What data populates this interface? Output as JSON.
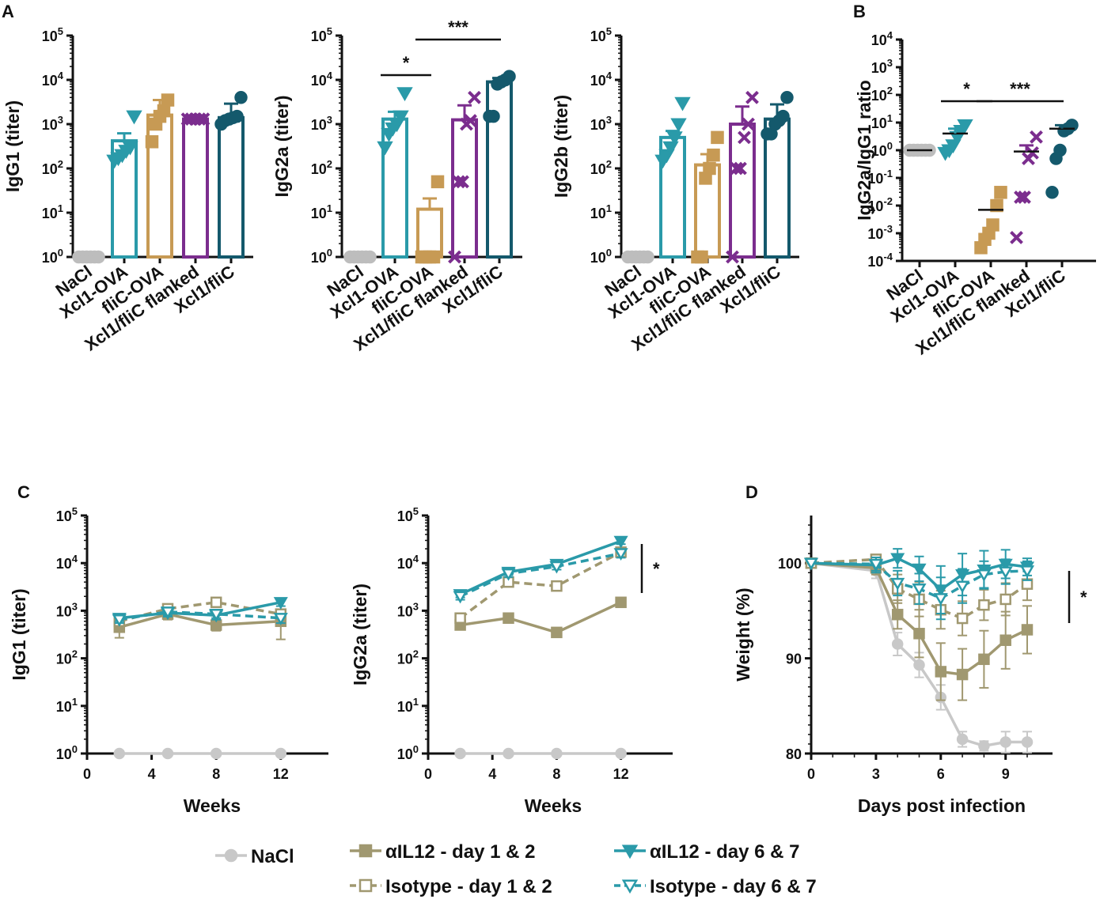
{
  "chart_data": [
    {
      "panel": "A",
      "type": "bar",
      "ylabel": "IgG1 (titer)",
      "yscale": "log",
      "ylim": [
        1,
        100000
      ],
      "categories": [
        "NaCl",
        "Xcl1-OVA",
        "fliC-OVA",
        "Xcl1/fliC flanked",
        "Xcl1/fliC"
      ],
      "values": [
        1,
        420,
        1600,
        1300,
        1400
      ],
      "errors": [
        0,
        200,
        1900,
        0,
        1500
      ],
      "points": [
        [
          1,
          1,
          1,
          1,
          1,
          1
        ],
        [
          150,
          170,
          200,
          250,
          300,
          1500
        ],
        [
          400,
          1000,
          1500,
          2000,
          3500
        ],
        [
          1300,
          1300,
          1300,
          1300,
          1300
        ],
        [
          1000,
          1200,
          1300,
          1400,
          1500,
          4000
        ]
      ],
      "colors": [
        "#bdbdbd",
        "#2a9aa9",
        "#c79a54",
        "#7b2d8e",
        "#14596c"
      ],
      "markers": [
        "circle",
        "triangle-down",
        "square",
        "x",
        "circle"
      ],
      "significance": []
    },
    {
      "panel": "A",
      "type": "bar",
      "ylabel": "IgG2a (titer)",
      "yscale": "log",
      "ylim": [
        1,
        100000
      ],
      "categories": [
        "NaCl",
        "Xcl1-OVA",
        "fliC-OVA",
        "Xcl1/fliC flanked",
        "Xcl1/fliC"
      ],
      "values": [
        1,
        1300,
        12,
        1250,
        9000
      ],
      "errors": [
        0,
        600,
        9,
        1400,
        2000
      ],
      "points": [
        [
          1,
          1,
          1,
          1,
          1,
          1
        ],
        [
          300,
          600,
          800,
          1000,
          1500,
          5000
        ],
        [
          1,
          1,
          1,
          1,
          50
        ],
        [
          1,
          50,
          50,
          1000,
          1200,
          4000
        ],
        [
          1500,
          1500,
          8000,
          9000,
          10000,
          12000
        ]
      ],
      "colors": [
        "#bdbdbd",
        "#2a9aa9",
        "#c79a54",
        "#7b2d8e",
        "#14596c"
      ],
      "markers": [
        "circle",
        "triangle-down",
        "square",
        "x",
        "circle"
      ],
      "significance": [
        {
          "from": 1,
          "to": 2,
          "label": "*"
        },
        {
          "from": 2,
          "to": 4,
          "label": "***"
        }
      ]
    },
    {
      "panel": "A",
      "type": "bar",
      "ylabel": "IgG2b (titer)",
      "yscale": "log",
      "ylim": [
        1,
        100000
      ],
      "categories": [
        "NaCl",
        "Xcl1-OVA",
        "fliC-OVA",
        "Xcl1/fliC flanked",
        "Xcl1/fliC"
      ],
      "values": [
        1,
        500,
        120,
        1000,
        1300
      ],
      "errors": [
        0,
        200,
        90,
        1500,
        1500
      ],
      "points": [
        [
          1,
          1,
          1,
          1,
          1,
          1
        ],
        [
          150,
          200,
          300,
          500,
          1000,
          3000
        ],
        [
          1,
          1,
          60,
          100,
          200,
          500
        ],
        [
          1,
          100,
          100,
          500,
          1000,
          4000
        ],
        [
          600,
          600,
          1000,
          1200,
          1500,
          4000
        ]
      ],
      "colors": [
        "#bdbdbd",
        "#2a9aa9",
        "#c79a54",
        "#7b2d8e",
        "#14596c"
      ],
      "markers": [
        "circle",
        "triangle-down",
        "square",
        "x",
        "circle"
      ],
      "significance": []
    },
    {
      "panel": "B",
      "type": "scatter",
      "ylabel": "IgG2a/IgG1 ratio",
      "yscale": "log",
      "ylim": [
        0.0001,
        10000
      ],
      "categories": [
        "NaCl",
        "Xcl1-OVA",
        "fliC-OVA",
        "Xcl1/fliC flanked",
        "Xcl1/fliC"
      ],
      "means": [
        1,
        4,
        0.007,
        0.9,
        6
      ],
      "errors": [
        0,
        2,
        0,
        0.6,
        2
      ],
      "points": [
        [
          1,
          1,
          1,
          1,
          1,
          1
        ],
        [
          0.8,
          1,
          1.5,
          3,
          5,
          8
        ],
        [
          0.0003,
          0.0006,
          0.001,
          0.002,
          0.01,
          0.03
        ],
        [
          0.0007,
          0.02,
          0.02,
          0.5,
          0.8,
          3
        ],
        [
          0.03,
          0.5,
          1,
          5,
          6,
          8
        ]
      ],
      "colors": [
        "#bdbdbd",
        "#2a9aa9",
        "#c79a54",
        "#7b2d8e",
        "#14596c"
      ],
      "markers": [
        "circle",
        "triangle-down",
        "square",
        "x",
        "circle"
      ],
      "significance": [
        {
          "from": 1,
          "to": 2,
          "label": "*"
        },
        {
          "from": 2,
          "to": 4,
          "label": "***"
        }
      ]
    },
    {
      "panel": "C",
      "type": "line",
      "ylabel": "IgG1 (titer)",
      "xlabel": "Weeks",
      "yscale": "log",
      "ylim": [
        1,
        100000
      ],
      "xlim": [
        0,
        15
      ],
      "xticks": [
        0,
        4,
        8,
        12
      ],
      "series": [
        {
          "name": "NaCl",
          "x": [
            2,
            5,
            8,
            12
          ],
          "values": [
            1,
            1,
            1,
            1
          ],
          "errors": [
            0,
            0,
            0,
            0
          ]
        },
        {
          "name": "αIL12 - day 1 & 2",
          "x": [
            2,
            5,
            8,
            12
          ],
          "values": [
            450,
            850,
            500,
            600
          ],
          "errors": [
            180,
            200,
            120,
            350
          ]
        },
        {
          "name": "Isotype - day 1 & 2",
          "x": [
            2,
            5,
            8,
            12
          ],
          "values": [
            600,
            1100,
            1500,
            850
          ],
          "errors": [
            150,
            250,
            300,
            200
          ]
        },
        {
          "name": "αIL12 - day 6 & 7",
          "x": [
            2,
            5,
            8,
            12
          ],
          "values": [
            700,
            900,
            800,
            1500
          ],
          "errors": [
            100,
            150,
            150,
            250
          ]
        },
        {
          "name": "Isotype - day 6 & 7",
          "x": [
            2,
            5,
            8,
            12
          ],
          "values": [
            650,
            950,
            850,
            700
          ],
          "errors": [
            100,
            150,
            150,
            150
          ]
        }
      ],
      "significance": []
    },
    {
      "panel": "C",
      "type": "line",
      "ylabel": "IgG2a (titer)",
      "xlabel": "Weeks",
      "yscale": "log",
      "ylim": [
        1,
        100000
      ],
      "xlim": [
        0,
        15
      ],
      "xticks": [
        0,
        4,
        8,
        12
      ],
      "series": [
        {
          "name": "NaCl",
          "x": [
            2,
            5,
            8,
            12
          ],
          "values": [
            1,
            1,
            1,
            1
          ],
          "errors": [
            0,
            0,
            0,
            0
          ]
        },
        {
          "name": "αIL12 - day 1 & 2",
          "x": [
            2,
            5,
            8,
            12
          ],
          "values": [
            500,
            700,
            350,
            1500
          ],
          "errors": [
            100,
            100,
            60,
            250
          ]
        },
        {
          "name": "Isotype - day 1 & 2",
          "x": [
            2,
            5,
            8,
            12
          ],
          "values": [
            700,
            4000,
            3300,
            17000
          ],
          "errors": [
            150,
            800,
            600,
            3000
          ]
        },
        {
          "name": "αIL12 - day 6 & 7",
          "x": [
            2,
            5,
            8,
            12
          ],
          "values": [
            2200,
            6500,
            9500,
            29000
          ],
          "errors": [
            300,
            900,
            1200,
            4000
          ]
        },
        {
          "name": "Isotype - day 6 & 7",
          "x": [
            2,
            5,
            8,
            12
          ],
          "values": [
            2000,
            6000,
            8500,
            16000
          ],
          "errors": [
            300,
            900,
            1200,
            3000
          ]
        }
      ],
      "significance": [
        {
          "label": "*"
        }
      ]
    },
    {
      "panel": "D",
      "type": "line",
      "ylabel": "Weight (%)",
      "xlabel": "Days post infection",
      "ylim": [
        80,
        105
      ],
      "xlim": [
        0,
        11
      ],
      "xticks": [
        0,
        3,
        6,
        9
      ],
      "yticks": [
        80,
        90,
        100
      ],
      "series": [
        {
          "name": "NaCl",
          "x": [
            0,
            3,
            4,
            5,
            6,
            7,
            8,
            9,
            10
          ],
          "values": [
            100,
            99.2,
            91.5,
            89.3,
            85.9,
            81.5,
            80.8,
            81.2,
            81.2
          ],
          "errors": [
            0,
            0.8,
            1.2,
            1.3,
            1.3,
            0.8,
            0.5,
            1.1,
            1.1
          ]
        },
        {
          "name": "αIL12 - day 1 & 2",
          "x": [
            0,
            3,
            4,
            5,
            6,
            7,
            8,
            9,
            10
          ],
          "values": [
            100,
            99.5,
            94.6,
            92.6,
            88.6,
            88.3,
            89.9,
            91.9,
            93.0
          ],
          "errors": [
            0,
            0.7,
            1.5,
            2.5,
            3.0,
            2.7,
            3.0,
            3.0,
            2.5
          ]
        },
        {
          "name": "Isotype - day 1 & 2",
          "x": [
            0,
            3,
            4,
            5,
            6,
            7,
            8,
            9,
            10
          ],
          "values": [
            100,
            100.4,
            97.3,
            96.2,
            95.1,
            94.2,
            95.6,
            96.2,
            97.8
          ],
          "errors": [
            0,
            0.5,
            1.5,
            1.8,
            2.0,
            1.8,
            1.6,
            1.7,
            1.7
          ]
        },
        {
          "name": "αIL12 - day 6 & 7",
          "x": [
            0,
            3,
            4,
            5,
            6,
            7,
            8,
            9,
            10
          ],
          "values": [
            100,
            99.8,
            100.5,
            99.4,
            97.2,
            98.8,
            99.3,
            99.9,
            99.6
          ],
          "errors": [
            0,
            0.8,
            1.0,
            1.3,
            2.5,
            2.2,
            2.0,
            1.5,
            0.9
          ]
        },
        {
          "name": "Isotype - day 6 & 7",
          "x": [
            0,
            3,
            4,
            5,
            6,
            7,
            8,
            9,
            10
          ],
          "values": [
            100,
            99.9,
            97.9,
            97.3,
            96.3,
            97.6,
            98.8,
            99.1,
            99.2
          ],
          "errors": [
            0,
            0.7,
            1.3,
            1.6,
            2.2,
            1.8,
            1.4,
            1.3,
            1.0
          ]
        }
      ],
      "significance": [
        {
          "label": "*"
        }
      ]
    }
  ],
  "panels": {
    "a": "A",
    "b": "B",
    "c": "C",
    "d": "D"
  },
  "legend": [
    {
      "name": "NaCl",
      "color": "#c8c8c8",
      "marker": "circle",
      "dashed": false,
      "filled": true
    },
    {
      "name": "αIL12 - day 1 & 2",
      "color": "#a09870",
      "marker": "square",
      "dashed": false,
      "filled": true
    },
    {
      "name": "Isotype - day 1 & 2",
      "color": "#a09870",
      "marker": "square",
      "dashed": true,
      "filled": false
    },
    {
      "name": "αIL12 - day 6 & 7",
      "color": "#2a9aa9",
      "marker": "triangle-down",
      "dashed": false,
      "filled": true
    },
    {
      "name": "Isotype - day 6 & 7",
      "color": "#2a9aa9",
      "marker": "triangle-down",
      "dashed": true,
      "filled": false
    }
  ]
}
